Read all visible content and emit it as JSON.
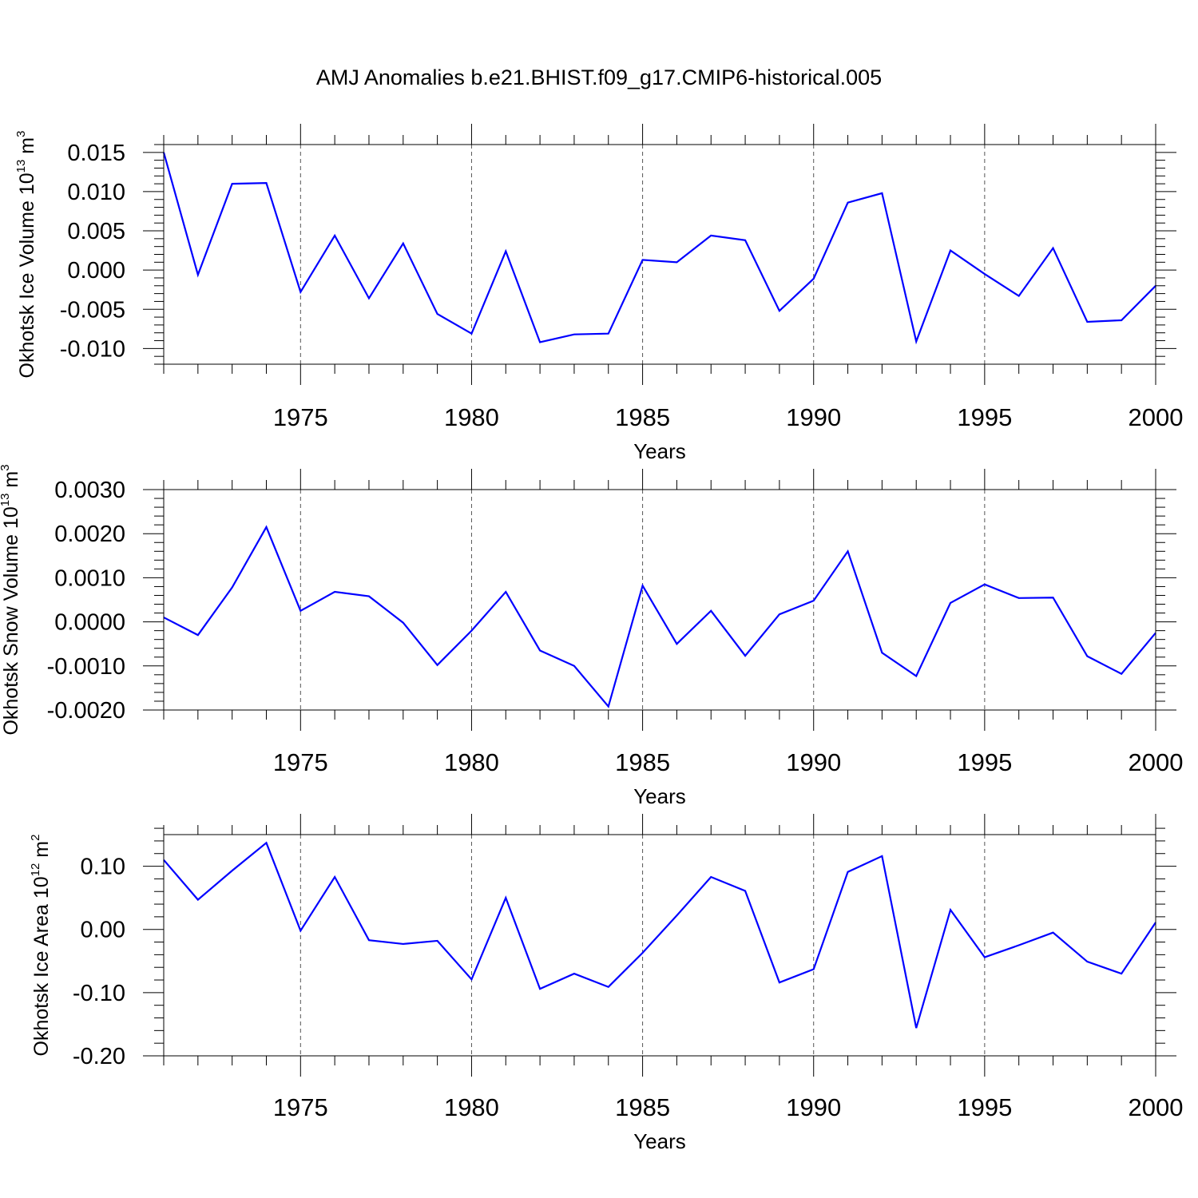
{
  "title": "AMJ Anomalies b.e21.BHIST.f09_g17.CMIP6-historical.005",
  "line_color": "#0000ff",
  "chart_data": [
    {
      "type": "line",
      "ylabel_main": "Okhotsk Ice Volume 10",
      "ylabel_exp": "13",
      "ylabel_unit": " m",
      "ylabel_unit_exp": "3",
      "xlabel": "Years",
      "xlim": [
        1971,
        2000
      ],
      "ylim": [
        -0.012,
        0.016
      ],
      "yticks": [
        -0.01,
        -0.005,
        0.0,
        0.005,
        0.01,
        0.015
      ],
      "ytick_labels": [
        "-0.010",
        "-0.005",
        "0.000",
        "0.005",
        "0.010",
        "0.015"
      ],
      "xticks": [
        1975,
        1980,
        1985,
        1990,
        1995,
        2000
      ],
      "xtick_labels": [
        "1975",
        "1980",
        "1985",
        "1990",
        "1995",
        "2000"
      ],
      "x": [
        1971,
        1972,
        1973,
        1974,
        1975,
        1976,
        1977,
        1978,
        1979,
        1980,
        1981,
        1982,
        1983,
        1984,
        1985,
        1986,
        1987,
        1988,
        1989,
        1990,
        1991,
        1992,
        1993,
        1994,
        1995,
        1996,
        1997,
        1998,
        1999,
        2000
      ],
      "values": [
        0.015,
        -0.0006,
        0.011,
        0.0111,
        -0.0028,
        0.0044,
        -0.0036,
        0.0034,
        -0.0056,
        -0.0081,
        0.0024,
        -0.0092,
        -0.0082,
        -0.0081,
        0.0013,
        0.001,
        0.0044,
        0.0038,
        -0.0052,
        -0.0011,
        0.0086,
        0.0098,
        -0.0091,
        0.0025,
        -0.0005,
        -0.0033,
        0.0028,
        -0.0066,
        -0.0064,
        -0.002
      ]
    },
    {
      "type": "line",
      "ylabel_main": "Okhotsk Snow Volume 10",
      "ylabel_exp": "13",
      "ylabel_unit": " m",
      "ylabel_unit_exp": "3",
      "xlabel": "Years",
      "xlim": [
        1971,
        2000
      ],
      "ylim": [
        -0.002,
        0.003
      ],
      "yticks": [
        -0.002,
        -0.001,
        0.0,
        0.001,
        0.002,
        0.003
      ],
      "ytick_labels": [
        "-0.0020",
        "-0.0010",
        "0.0000",
        "0.0010",
        "0.0020",
        "0.0030"
      ],
      "xticks": [
        1975,
        1980,
        1985,
        1990,
        1995,
        2000
      ],
      "xtick_labels": [
        "1975",
        "1980",
        "1985",
        "1990",
        "1995",
        "2000"
      ],
      "x": [
        1971,
        1972,
        1973,
        1974,
        1975,
        1976,
        1977,
        1978,
        1979,
        1980,
        1981,
        1982,
        1983,
        1984,
        1985,
        1986,
        1987,
        1988,
        1989,
        1990,
        1991,
        1992,
        1993,
        1994,
        1995,
        1996,
        1997,
        1998,
        1999,
        2000
      ],
      "values": [
        0.0001,
        -0.0003,
        0.00078,
        0.00215,
        0.00025,
        0.00068,
        0.00058,
        -2e-05,
        -0.00098,
        -0.0002,
        0.00068,
        -0.00065,
        -0.001,
        -0.00192,
        0.00082,
        -0.0005,
        0.00025,
        -0.00077,
        0.00017,
        0.00048,
        0.0016,
        -0.0007,
        -0.00123,
        0.00043,
        0.00085,
        0.00054,
        0.00055,
        -0.00078,
        -0.00118,
        -0.00025
      ]
    },
    {
      "type": "line",
      "ylabel_main": "Okhotsk Ice Area 10",
      "ylabel_exp": "12",
      "ylabel_unit": " m",
      "ylabel_unit_exp": "2",
      "xlabel": "Years",
      "xlim": [
        1971,
        2000
      ],
      "ylim": [
        -0.2,
        0.15
      ],
      "yticks": [
        -0.2,
        -0.1,
        0.0,
        0.1
      ],
      "ytick_labels": [
        "-0.20",
        "-0.10",
        "0.00",
        "0.10"
      ],
      "xticks": [
        1975,
        1980,
        1985,
        1990,
        1995,
        2000
      ],
      "xtick_labels": [
        "1975",
        "1980",
        "1985",
        "1990",
        "1995",
        "2000"
      ],
      "x": [
        1971,
        1972,
        1973,
        1974,
        1975,
        1976,
        1977,
        1978,
        1979,
        1980,
        1981,
        1982,
        1983,
        1984,
        1985,
        1986,
        1987,
        1988,
        1989,
        1990,
        1991,
        1992,
        1993,
        1994,
        1995,
        1996,
        1997,
        1998,
        1999,
        2000
      ],
      "values": [
        0.11,
        0.047,
        0.093,
        0.137,
        -0.002,
        0.083,
        -0.017,
        -0.023,
        -0.018,
        -0.079,
        0.05,
        -0.094,
        -0.07,
        -0.091,
        -0.037,
        0.022,
        0.083,
        0.061,
        -0.084,
        -0.063,
        0.091,
        0.116,
        -0.156,
        0.031,
        -0.044,
        -0.025,
        -0.005,
        -0.051,
        -0.07,
        0.011
      ]
    }
  ]
}
